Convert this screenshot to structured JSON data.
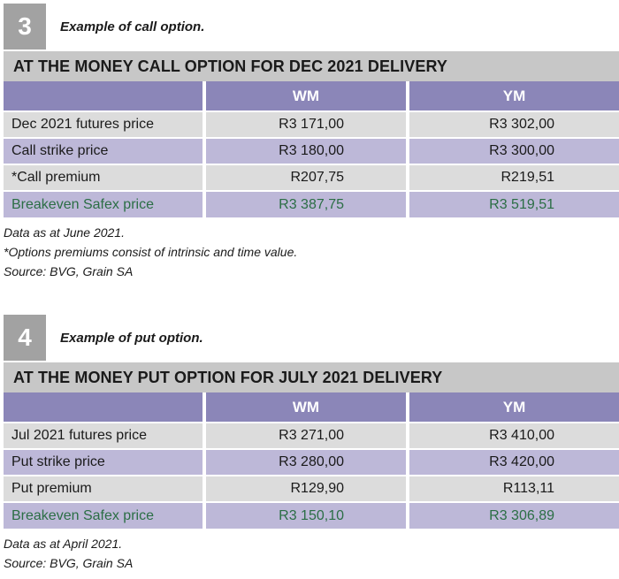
{
  "call_option": {
    "number": "3",
    "caption": "Example of call option.",
    "title": "AT THE MONEY CALL OPTION FOR DEC 2021 DELIVERY",
    "columns": [
      "",
      "WM",
      "YM"
    ],
    "rows": [
      {
        "label": "Dec 2021 futures price",
        "wm": "R3 171,00",
        "ym": "R3 302,00"
      },
      {
        "label": "Call strike price",
        "wm": "R3 180,00",
        "ym": "R3 300,00"
      },
      {
        "label": "*Call premium",
        "wm": "R207,75",
        "ym": "R219,51"
      },
      {
        "label": "Breakeven Safex price",
        "wm": "R3 387,75",
        "ym": "R3 519,51"
      }
    ],
    "notes": [
      "Data as at June 2021.",
      "*Options premiums consist of intrinsic and time value.",
      "Source: BVG, Grain SA"
    ]
  },
  "put_option": {
    "number": "4",
    "caption": "Example of put option.",
    "title": "AT THE MONEY PUT OPTION FOR JULY 2021 DELIVERY",
    "columns": [
      "",
      "WM",
      "YM"
    ],
    "rows": [
      {
        "label": "Jul 2021 futures price",
        "wm": "R3 271,00",
        "ym": "R3 410,00"
      },
      {
        "label": "Put strike price",
        "wm": "R3 280,00",
        "ym": "R3 420,00"
      },
      {
        "label": "Put premium",
        "wm": "R129,90",
        "ym": "R113,11"
      },
      {
        "label": "Breakeven Safex price",
        "wm": "R3 150,10",
        "ym": "R3 306,89"
      }
    ],
    "notes": [
      "Data as at April 2021.",
      "Source: BVG, Grain SA"
    ]
  },
  "colors": {
    "header_purple": "#8b86b8",
    "row_grey": "#dcdcdc",
    "row_purple": "#bdb8d8",
    "title_grey": "#c7c7c7",
    "number_box": "#a2a2a2",
    "breakeven_green": "#2b6e45"
  }
}
